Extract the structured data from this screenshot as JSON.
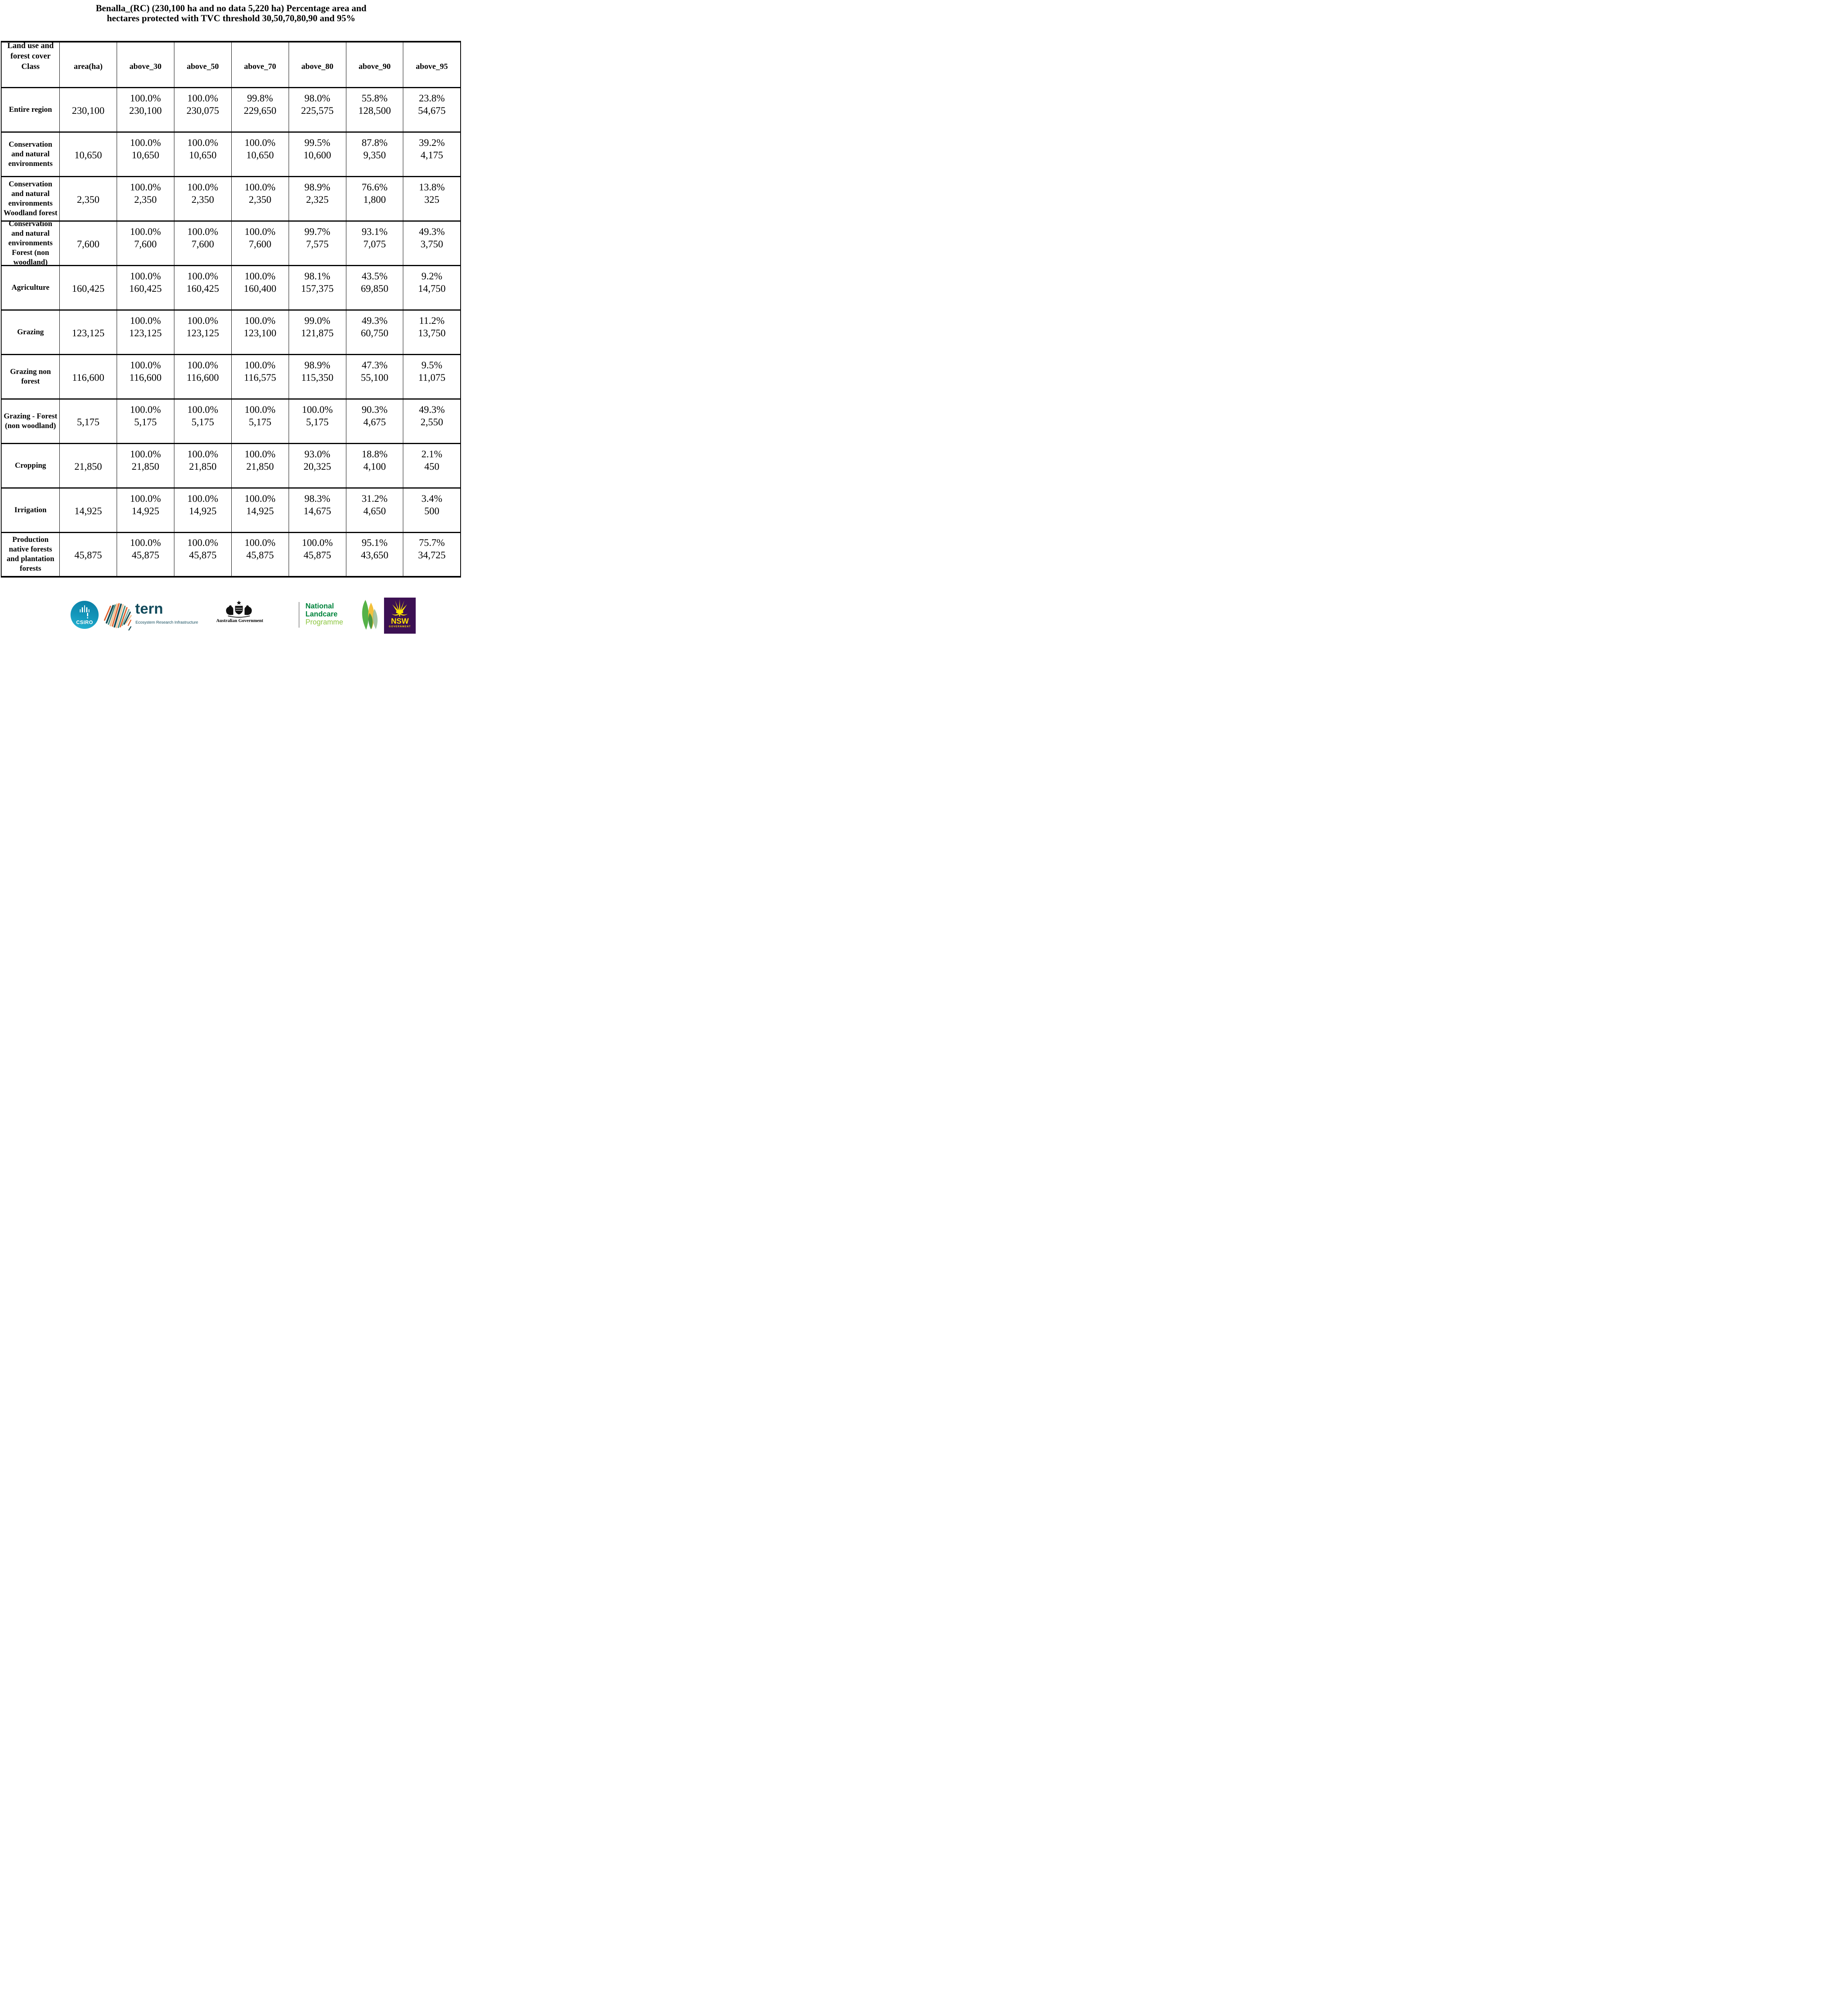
{
  "title": "Benalla_(RC) (230,100 ha and no data 5,220 ha) Percentage area and\nhectares protected with TVC threshold 30,50,70,80,90 and 95%",
  "chart_data": {
    "type": "table",
    "title": "Benalla_(RC) (230,100 ha and no data 5,220 ha) Percentage area and hectares protected with TVC threshold 30,50,70,80,90 and 95%",
    "columns": [
      "Land use and forest cover Class",
      "area(ha)",
      "above_30",
      "above_50",
      "above_70",
      "above_80",
      "above_90",
      "above_95"
    ],
    "rows": [
      {
        "label": "Entire region",
        "area": "230,100",
        "cells": [
          [
            "100.0%",
            "230,100"
          ],
          [
            "100.0%",
            "230,075"
          ],
          [
            "99.8%",
            "229,650"
          ],
          [
            "98.0%",
            "225,575"
          ],
          [
            "55.8%",
            "128,500"
          ],
          [
            "23.8%",
            "54,675"
          ]
        ]
      },
      {
        "label": "Conservation and natural environments",
        "area": "10,650",
        "cells": [
          [
            "100.0%",
            "10,650"
          ],
          [
            "100.0%",
            "10,650"
          ],
          [
            "100.0%",
            "10,650"
          ],
          [
            "99.5%",
            "10,600"
          ],
          [
            "87.8%",
            "9,350"
          ],
          [
            "39.2%",
            "4,175"
          ]
        ]
      },
      {
        "label": "Conservation and natural environments Woodland forest",
        "area": "2,350",
        "cells": [
          [
            "100.0%",
            "2,350"
          ],
          [
            "100.0%",
            "2,350"
          ],
          [
            "100.0%",
            "2,350"
          ],
          [
            "98.9%",
            "2,325"
          ],
          [
            "76.6%",
            "1,800"
          ],
          [
            "13.8%",
            "325"
          ]
        ]
      },
      {
        "label": "Conservation and natural environments Forest (non woodland)",
        "area": "7,600",
        "cells": [
          [
            "100.0%",
            "7,600"
          ],
          [
            "100.0%",
            "7,600"
          ],
          [
            "100.0%",
            "7,600"
          ],
          [
            "99.7%",
            "7,575"
          ],
          [
            "93.1%",
            "7,075"
          ],
          [
            "49.3%",
            "3,750"
          ]
        ]
      },
      {
        "label": "Agriculture",
        "area": "160,425",
        "cells": [
          [
            "100.0%",
            "160,425"
          ],
          [
            "100.0%",
            "160,425"
          ],
          [
            "100.0%",
            "160,400"
          ],
          [
            "98.1%",
            "157,375"
          ],
          [
            "43.5%",
            "69,850"
          ],
          [
            "9.2%",
            "14,750"
          ]
        ]
      },
      {
        "label": "Grazing",
        "area": "123,125",
        "cells": [
          [
            "100.0%",
            "123,125"
          ],
          [
            "100.0%",
            "123,125"
          ],
          [
            "100.0%",
            "123,100"
          ],
          [
            "99.0%",
            "121,875"
          ],
          [
            "49.3%",
            "60,750"
          ],
          [
            "11.2%",
            "13,750"
          ]
        ]
      },
      {
        "label": "Grazing non forest",
        "area": "116,600",
        "cells": [
          [
            "100.0%",
            "116,600"
          ],
          [
            "100.0%",
            "116,600"
          ],
          [
            "100.0%",
            "116,575"
          ],
          [
            "98.9%",
            "115,350"
          ],
          [
            "47.3%",
            "55,100"
          ],
          [
            "9.5%",
            "11,075"
          ]
        ]
      },
      {
        "label": "Grazing - Forest (non woodland)",
        "area": "5,175",
        "cells": [
          [
            "100.0%",
            "5,175"
          ],
          [
            "100.0%",
            "5,175"
          ],
          [
            "100.0%",
            "5,175"
          ],
          [
            "100.0%",
            "5,175"
          ],
          [
            "90.3%",
            "4,675"
          ],
          [
            "49.3%",
            "2,550"
          ]
        ]
      },
      {
        "label": "Cropping",
        "area": "21,850",
        "cells": [
          [
            "100.0%",
            "21,850"
          ],
          [
            "100.0%",
            "21,850"
          ],
          [
            "100.0%",
            "21,850"
          ],
          [
            "93.0%",
            "20,325"
          ],
          [
            "18.8%",
            "4,100"
          ],
          [
            "2.1%",
            "450"
          ]
        ]
      },
      {
        "label": "Irrigation",
        "area": "14,925",
        "cells": [
          [
            "100.0%",
            "14,925"
          ],
          [
            "100.0%",
            "14,925"
          ],
          [
            "100.0%",
            "14,925"
          ],
          [
            "98.3%",
            "14,675"
          ],
          [
            "31.2%",
            "4,650"
          ],
          [
            "3.4%",
            "500"
          ]
        ]
      },
      {
        "label": "Production native forests and plantation forests",
        "area": "45,875",
        "cells": [
          [
            "100.0%",
            "45,875"
          ],
          [
            "100.0%",
            "45,875"
          ],
          [
            "100.0%",
            "45,875"
          ],
          [
            "100.0%",
            "45,875"
          ],
          [
            "95.1%",
            "43,650"
          ],
          [
            "75.7%",
            "34,725"
          ]
        ]
      }
    ]
  },
  "logos": {
    "csiro": {
      "text": "CSIRO"
    },
    "tern": {
      "name": "tern",
      "subtitle": "Ecosystem Research Infrastructure"
    },
    "aus_gov": {
      "text": "Australian Government"
    },
    "landcare": {
      "line1": "National",
      "line2": "Landcare",
      "line3": "Programme"
    },
    "nsw": {
      "line1": "NSW",
      "line2": "GOVERNMENT"
    }
  },
  "colors": {
    "csiro_teal": "#0b7ca3",
    "tern_teal": "#134B5C",
    "landcare_green": "#00843D",
    "landcare_light_green": "#8CC63F",
    "nsw_purple": "#3C1053",
    "nsw_yellow": "#FFE600",
    "tern_map_orange": "#E0622E",
    "tern_map_teal": "#3E8A82",
    "tern_map_dark": "#134B54",
    "tern_map_peach": "#F3C59B",
    "tern_map_sage": "#7FB2A4"
  }
}
